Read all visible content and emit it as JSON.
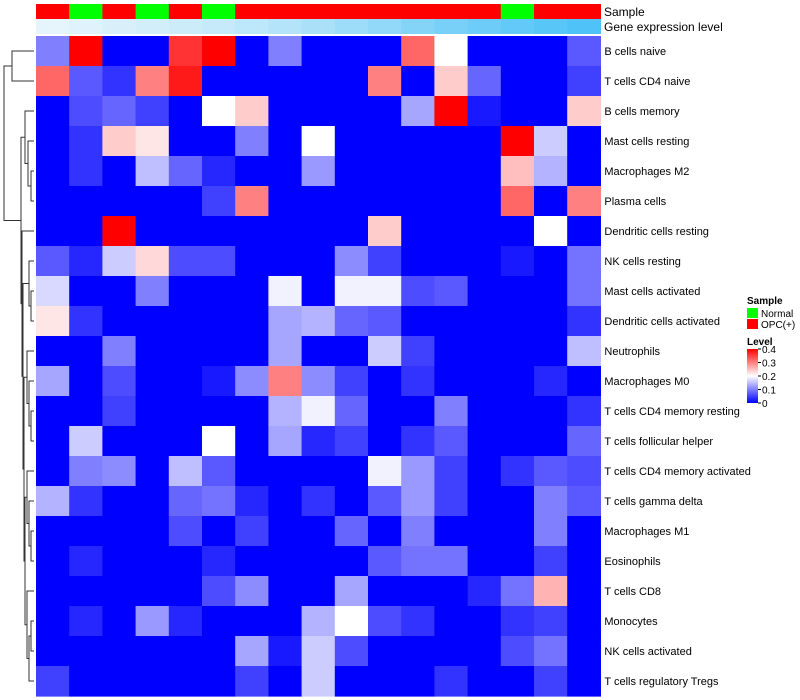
{
  "chart_data": {
    "type": "heatmap",
    "annotation_tracks": [
      {
        "name": "Sample"
      },
      {
        "name": "Gene expression level"
      }
    ],
    "sample_groups": [
      "OPC(+)",
      "Normal",
      "OPC(+)",
      "Normal",
      "OPC(+)",
      "Normal",
      "OPC(+)",
      "OPC(+)",
      "OPC(+)",
      "OPC(+)",
      "OPC(+)",
      "OPC(+)",
      "OPC(+)",
      "OPC(+)",
      "Normal",
      "OPC(+)",
      "OPC(+)"
    ],
    "expression_track": [
      0.02,
      0.04,
      0.06,
      0.08,
      0.1,
      0.12,
      0.15,
      0.18,
      0.21,
      0.25,
      0.29,
      0.33,
      0.37,
      0.4,
      0.44,
      0.47,
      0.5
    ],
    "rows": [
      "B cells naive",
      "T cells CD4 naive",
      "B cells memory",
      "Mast cells resting",
      "Macrophages M2",
      "Plasma cells",
      "Dendritic cells resting",
      "NK cells resting",
      "Mast cells activated",
      "Dendritic cells activated",
      "Neutrophils",
      "Macrophages M0",
      "T cells CD4 memory resting",
      "T cells follicular helper",
      "T cells CD4 memory activated",
      "T cells gamma delta",
      "Macrophages M1",
      "Eosinophils",
      "T cells CD8",
      "Monocytes",
      "NK cells activated",
      "T cells regulatory  Tregs"
    ],
    "values": [
      [
        0.1,
        0.4,
        0.0,
        0.0,
        0.36,
        0.4,
        0.0,
        0.1,
        0.0,
        0.0,
        0.0,
        0.32,
        0.2,
        0.0,
        0.0,
        0.0,
        0.07
      ],
      [
        0.32,
        0.07,
        0.04,
        0.3,
        0.38,
        0.0,
        0.0,
        0.0,
        0.0,
        0.0,
        0.3,
        0.0,
        0.24,
        0.08,
        0.0,
        0.0,
        0.05
      ],
      [
        0.0,
        0.06,
        0.08,
        0.05,
        0.0,
        0.2,
        0.24,
        0.0,
        0.0,
        0.0,
        0.0,
        0.13,
        0.4,
        0.02,
        0.0,
        0.0,
        0.24
      ],
      [
        0.0,
        0.04,
        0.24,
        0.22,
        0.0,
        0.0,
        0.1,
        0.0,
        0.2,
        0.0,
        0.0,
        0.0,
        0.0,
        0.0,
        0.4,
        0.16,
        0.0
      ],
      [
        0.0,
        0.04,
        0.0,
        0.15,
        0.08,
        0.03,
        0.0,
        0.0,
        0.12,
        0.0,
        0.0,
        0.0,
        0.0,
        0.0,
        0.25,
        0.14,
        0.0
      ],
      [
        0.0,
        0.0,
        0.0,
        0.0,
        0.0,
        0.05,
        0.3,
        0.0,
        0.0,
        0.0,
        0.0,
        0.0,
        0.0,
        0.0,
        0.32,
        0.0,
        0.3
      ],
      [
        0.0,
        0.0,
        0.4,
        0.0,
        0.0,
        0.0,
        0.0,
        0.0,
        0.0,
        0.0,
        0.24,
        0.0,
        0.0,
        0.0,
        0.0,
        0.2,
        0.0
      ],
      [
        0.07,
        0.03,
        0.16,
        0.23,
        0.06,
        0.06,
        0.0,
        0.0,
        0.0,
        0.11,
        0.05,
        0.0,
        0.0,
        0.0,
        0.02,
        0.0,
        0.09
      ],
      [
        0.17,
        0.0,
        0.0,
        0.1,
        0.0,
        0.0,
        0.0,
        0.19,
        0.0,
        0.19,
        0.19,
        0.06,
        0.07,
        0.0,
        0.0,
        0.0,
        0.09
      ],
      [
        0.22,
        0.04,
        0.0,
        0.0,
        0.0,
        0.0,
        0.0,
        0.13,
        0.14,
        0.08,
        0.07,
        0.0,
        0.0,
        0.0,
        0.0,
        0.0,
        0.04
      ],
      [
        0.0,
        0.0,
        0.1,
        0.0,
        0.0,
        0.0,
        0.0,
        0.13,
        0.0,
        0.0,
        0.16,
        0.05,
        0.0,
        0.0,
        0.0,
        0.0,
        0.15
      ],
      [
        0.13,
        0.0,
        0.06,
        0.0,
        0.0,
        0.02,
        0.11,
        0.3,
        0.11,
        0.05,
        0.0,
        0.04,
        0.0,
        0.0,
        0.0,
        0.03,
        0.0
      ],
      [
        0.0,
        0.0,
        0.05,
        0.0,
        0.0,
        0.0,
        0.0,
        0.14,
        0.19,
        0.08,
        0.0,
        0.0,
        0.1,
        0.0,
        0.0,
        0.0,
        0.04
      ],
      [
        0.0,
        0.16,
        0.0,
        0.0,
        0.0,
        0.2,
        0.0,
        0.13,
        0.03,
        0.05,
        0.0,
        0.04,
        0.07,
        0.0,
        0.0,
        0.0,
        0.08
      ],
      [
        0.0,
        0.1,
        0.11,
        0.0,
        0.15,
        0.07,
        0.0,
        0.0,
        0.0,
        0.0,
        0.19,
        0.12,
        0.05,
        0.0,
        0.04,
        0.07,
        0.06
      ],
      [
        0.14,
        0.04,
        0.0,
        0.0,
        0.08,
        0.09,
        0.03,
        0.0,
        0.04,
        0.0,
        0.07,
        0.12,
        0.05,
        0.0,
        0.0,
        0.1,
        0.07
      ],
      [
        0.0,
        0.0,
        0.0,
        0.0,
        0.06,
        0.0,
        0.05,
        0.0,
        0.0,
        0.08,
        0.0,
        0.1,
        0.0,
        0.0,
        0.0,
        0.1,
        0.0
      ],
      [
        0.0,
        0.03,
        0.0,
        0.0,
        0.0,
        0.03,
        0.0,
        0.0,
        0.0,
        0.0,
        0.07,
        0.09,
        0.09,
        0.0,
        0.0,
        0.05,
        0.0
      ],
      [
        0.0,
        0.0,
        0.0,
        0.0,
        0.0,
        0.06,
        0.11,
        0.0,
        0.0,
        0.13,
        0.0,
        0.0,
        0.0,
        0.03,
        0.09,
        0.26,
        0.0
      ],
      [
        0.0,
        0.03,
        0.0,
        0.12,
        0.03,
        0.0,
        0.0,
        0.0,
        0.14,
        0.2,
        0.06,
        0.04,
        0.0,
        0.0,
        0.04,
        0.05,
        0.0
      ],
      [
        0.0,
        0.0,
        0.0,
        0.0,
        0.0,
        0.0,
        0.13,
        0.02,
        0.16,
        0.06,
        0.0,
        0.0,
        0.0,
        0.0,
        0.06,
        0.09,
        0.0
      ],
      [
        0.05,
        0.0,
        0.0,
        0.0,
        0.0,
        0.0,
        0.05,
        0.0,
        0.16,
        0.0,
        0.0,
        0.0,
        0.04,
        0.0,
        0.0,
        0.05,
        0.0
      ]
    ],
    "scale": {
      "min": 0,
      "max": 0.4,
      "low_color": "#0000FF",
      "mid_color": "#FFFFFF",
      "high_color": "#FF0000"
    },
    "legend": {
      "sample_title": "Sample",
      "sample_entries": [
        {
          "label": "Normal",
          "color": "#00FF00"
        },
        {
          "label": "OPC(+)",
          "color": "#FF0000"
        }
      ],
      "level_title": "Level",
      "level_ticks": [
        "0.4",
        "0.3",
        "0.2",
        "0.1",
        "0"
      ],
      "placement": "right"
    },
    "track_colors": {
      "Normal": "#00FF00",
      "OPC(+)": "#FF0000",
      "expression_low": "#E6F4FB",
      "expression_high": "#4FC3F7"
    },
    "dendrogram": "rows"
  }
}
